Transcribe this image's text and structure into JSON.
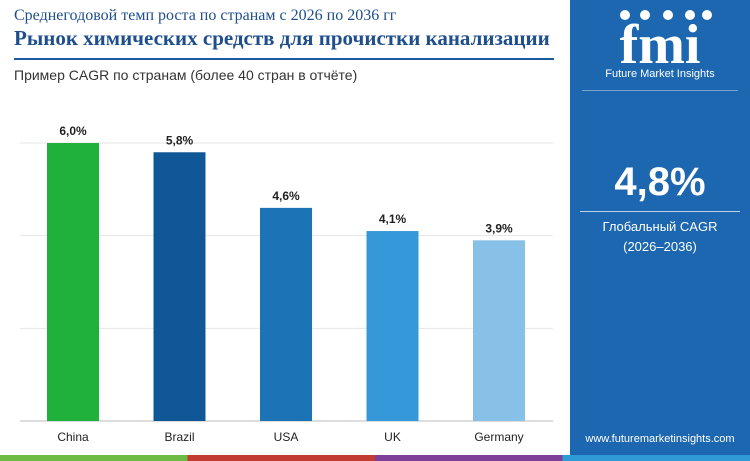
{
  "header": {
    "supertitle": "Среднегодовой темп роста по странам с 2026 по 2036 гг",
    "title": "Рынок химических средств для прочистки канализации",
    "subtitle": "Пример CAGR по странам (более 40 стран в отчёте)"
  },
  "chart_data": {
    "type": "bar",
    "categories": [
      "China",
      "Brazil",
      "USA",
      "UK",
      "Germany"
    ],
    "values": [
      6.0,
      5.8,
      4.6,
      4.1,
      3.9
    ],
    "value_labels": [
      "6,0%",
      "5,8%",
      "4,6%",
      "4,1%",
      "3,9%"
    ],
    "bar_colors": [
      "#1fb13c",
      "#0f5796",
      "#1c74b6",
      "#3598d8",
      "#88c1e8"
    ],
    "ylim": [
      0,
      6
    ],
    "grid": true
  },
  "sidebar": {
    "logo_text": "fmi",
    "logo_tagline": "Future Market Insights",
    "global_cagr_value": "4,8%",
    "global_cagr_label": "Глобальный CAGR",
    "global_cagr_period": "(2026–2036)",
    "website": "www.futuremarketinsights.com",
    "background_color": "#1c67b0"
  },
  "footer_colors": [
    "#6dbb45",
    "#c13d32",
    "#7d3f98",
    "#2e9bd6"
  ]
}
